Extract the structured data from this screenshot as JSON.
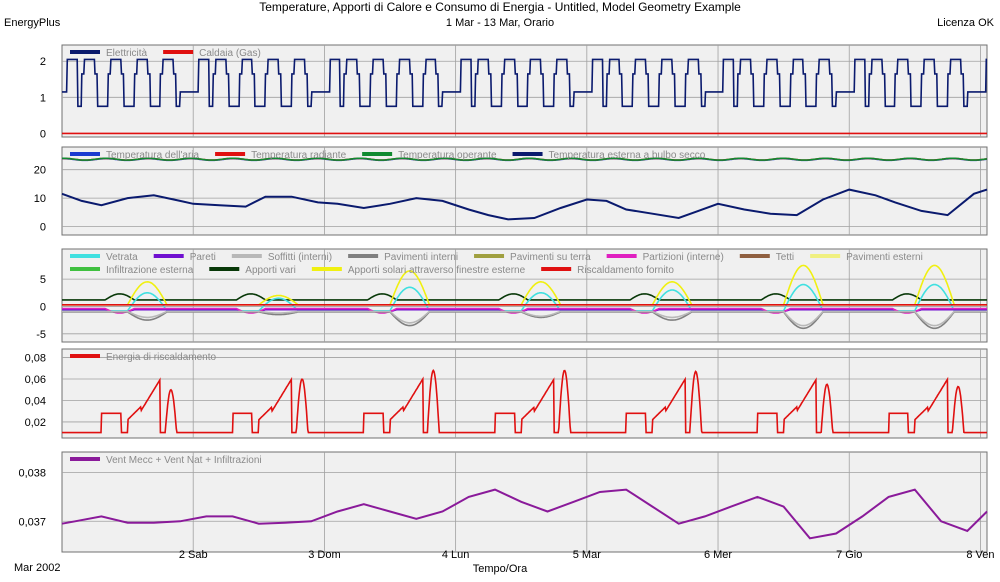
{
  "header": {
    "title": "Temperature, Apporti di Calore e Consumo di Energia - Untitled, Model Geometry Example",
    "subtitle": "1 Mar - 13 Mar, Orario",
    "app": "EnergyPlus",
    "license": "Licenza OK"
  },
  "footer": {
    "date_label": "Mar 2002",
    "xlabel": "Tempo/Ora"
  },
  "colors": {
    "panel_bg": "#f0f0f0",
    "grid": "#a0a0a0",
    "navy": "#0a1a6e",
    "red": "#e01010",
    "blue": "#1a3ad0",
    "green": "#108a30",
    "purple": "#8a1a9a"
  },
  "chart_data": {
    "type": "line",
    "x_ticks": [
      {
        "day": 2,
        "label": "2 Sab"
      },
      {
        "day": 3,
        "label": "3 Dom"
      },
      {
        "day": 4,
        "label": "4 Lun"
      },
      {
        "day": 5,
        "label": "5 Mar"
      },
      {
        "day": 6,
        "label": "6 Mer"
      },
      {
        "day": 7,
        "label": "7 Gio"
      },
      {
        "day": 8,
        "label": "8 Ven"
      }
    ],
    "xlim": [
      1.0,
      8.05
    ],
    "panels": [
      {
        "id": "energy",
        "yticks": [
          0,
          1,
          2
        ],
        "ytick_labels": [
          "0",
          "1",
          "2"
        ],
        "ylim": [
          -0.1,
          2.45
        ],
        "legend": [
          {
            "name": "Elettricità",
            "color": "#0a1a6e"
          },
          {
            "name": "Caldaia (Gas)",
            "color": "#e01010"
          }
        ],
        "series": [
          {
            "name": "Elettricità",
            "color": "#0a1a6e",
            "kind": "electric",
            "weekday": 0.75,
            "base": 1.15,
            "peak": 2.05,
            "bump": 1.65
          },
          {
            "name": "Caldaia (Gas)",
            "color": "#e01010",
            "kind": "const",
            "value": 0
          }
        ]
      },
      {
        "id": "temps",
        "yticks": [
          0,
          10,
          20
        ],
        "ytick_labels": [
          "0",
          "10",
          "20"
        ],
        "ylim": [
          -3,
          28
        ],
        "legend": [
          {
            "name": "Temperatura dell'aria",
            "color": "#1a3ad0"
          },
          {
            "name": "Temperatura radiante",
            "color": "#e01010"
          },
          {
            "name": "Temperatura operante",
            "color": "#108a30"
          },
          {
            "name": "Temperatura esterna a bulbo secco",
            "color": "#0a1a6e"
          }
        ],
        "series": [
          {
            "name": "Temperatura dell'aria",
            "color": "#1a3ad0",
            "kind": "near",
            "value": 23.6,
            "ripple": 0.5
          },
          {
            "name": "Temperatura radiante",
            "color": "#e01010",
            "kind": "near",
            "value": 23.7,
            "ripple": 0.5
          },
          {
            "name": "Temperatura operante",
            "color": "#108a30",
            "kind": "near",
            "value": 23.7,
            "ripple": 0.55
          },
          {
            "name": "Temperatura esterna a bulbo secco",
            "color": "#0a1a6e",
            "kind": "points",
            "width": 2,
            "x": [
              1.0,
              1.15,
              1.3,
              1.5,
              1.7,
              1.9,
              2.0,
              2.2,
              2.4,
              2.55,
              2.75,
              2.95,
              3.1,
              3.3,
              3.5,
              3.7,
              3.9,
              4.1,
              4.25,
              4.4,
              4.6,
              4.8,
              5.0,
              5.15,
              5.3,
              5.5,
              5.7,
              5.85,
              6.0,
              6.2,
              6.4,
              6.6,
              6.8,
              7.0,
              7.2,
              7.35,
              7.55,
              7.75,
              7.95,
              8.05
            ],
            "y": [
              11.5,
              9,
              7.5,
              10,
              11,
              9,
              8,
              7.5,
              7,
              10.5,
              10.5,
              8.5,
              8,
              6.5,
              8,
              10,
              9,
              6,
              4,
              2.5,
              3,
              6.5,
              9.5,
              9,
              6,
              4.5,
              3,
              5.5,
              8,
              6,
              4.5,
              4,
              9.5,
              13,
              11,
              8.5,
              5.5,
              4,
              11.5,
              13
            ]
          }
        ]
      },
      {
        "id": "gains",
        "yticks": [
          -5,
          0,
          5
        ],
        "ytick_labels": [
          "-5",
          "0",
          "5"
        ],
        "ylim": [
          -6.5,
          10.5
        ],
        "legend_rows": [
          [
            {
              "name": "Vetrata",
              "color": "#40e0e0"
            },
            {
              "name": "Pareti",
              "color": "#7010d0"
            },
            {
              "name": "Soffitti (interni)",
              "color": "#b8b8b8"
            },
            {
              "name": "Pavimenti interni",
              "color": "#808080"
            },
            {
              "name": "Pavimenti su terra",
              "color": "#a0a040"
            },
            {
              "name": "Partizioni (interne)",
              "color": "#e020c0"
            },
            {
              "name": "Tetti",
              "color": "#906040"
            },
            {
              "name": "Pavimenti esterni",
              "color": "#f0f080"
            }
          ],
          [
            {
              "name": "Infiltrazione esterna",
              "color": "#40c040"
            },
            {
              "name": "Apporti vari",
              "color": "#083808"
            },
            {
              "name": "Apporti solari attraverso finestre esterne",
              "color": "#f0f010"
            },
            {
              "name": "Riscaldamento fornito",
              "color": "#e01010"
            }
          ]
        ],
        "series": [
          {
            "name": "Apporti vari",
            "color": "#083808",
            "kind": "daily",
            "base": 1.2,
            "amp": 1.1
          },
          {
            "name": "Apporti solari attraverso finestre esterne",
            "color": "#f0f010",
            "kind": "solar",
            "base": 0.3,
            "peaks": [
              4.5,
              2,
              6.5,
              4.5,
              4.5,
              7.5
            ]
          },
          {
            "name": "Vetrata",
            "color": "#40e0e0",
            "kind": "solar",
            "base": -0.8,
            "peaks": [
              2.5,
              1.5,
              3.5,
              2.5,
              3,
              4
            ]
          },
          {
            "name": "Riscaldamento fornito",
            "color": "#e01010",
            "kind": "const",
            "value": 0.3
          },
          {
            "name": "Pareti",
            "color": "#7010d0",
            "kind": "daily",
            "base": -0.6,
            "amp": -0.5
          },
          {
            "name": "Partizioni (interne)",
            "color": "#e020c0",
            "kind": "daily",
            "base": -0.4,
            "amp": -0.8
          },
          {
            "name": "Pavimenti interni",
            "color": "#808080",
            "kind": "solar",
            "base": -1.0,
            "peaks": [
              -2.5,
              -1.5,
              -3.5,
              -2,
              -2.5,
              -4
            ]
          },
          {
            "name": "Soffitti (interni)",
            "color": "#b8b8b8",
            "kind": "solar",
            "base": -0.9,
            "peaks": [
              -2,
              -1.2,
              -3,
              -1.8,
              -2,
              -3.5
            ]
          }
        ]
      },
      {
        "id": "heating",
        "yticks": [
          0.02,
          0.04,
          0.06,
          0.08
        ],
        "ytick_labels": [
          "0,02",
          "0,04",
          "0,06",
          "0,08"
        ],
        "ylim": [
          0.005,
          0.088
        ],
        "legend": [
          {
            "name": "Energia di riscaldamento",
            "color": "#e01010"
          }
        ],
        "series": [
          {
            "name": "Energia di riscaldamento",
            "color": "#e01010",
            "kind": "heating",
            "low": 0.01,
            "peaks": [
              0.05,
              0.06,
              0.068,
              0.068,
              0.067,
              0.055,
              0.053
            ]
          }
        ]
      },
      {
        "id": "vent",
        "yticks": [
          0.037,
          0.038
        ],
        "ytick_labels": [
          "0,037",
          "0,038"
        ],
        "ylim": [
          0.03637,
          0.03842
        ],
        "legend": [
          {
            "name": "Vent Mecc + Vent Nat + Infiltrazioni",
            "color": "#8a1a9a"
          }
        ],
        "series": [
          {
            "name": "Vent Mecc + Vent Nat + Infiltrazioni",
            "color": "#8a1a9a",
            "kind": "points",
            "width": 2,
            "x": [
              1.0,
              1.1,
              1.3,
              1.5,
              1.7,
              1.9,
              2.1,
              2.3,
              2.5,
              2.7,
              2.9,
              3.1,
              3.3,
              3.5,
              3.7,
              3.9,
              4.1,
              4.3,
              4.5,
              4.7,
              4.9,
              5.1,
              5.3,
              5.5,
              5.7,
              5.9,
              6.1,
              6.3,
              6.5,
              6.7,
              6.9,
              7.1,
              7.3,
              7.5,
              7.7,
              7.9,
              8.05
            ],
            "y": [
              0.03695,
              0.037,
              0.0371,
              0.03697,
              0.03697,
              0.037,
              0.0371,
              0.0371,
              0.03695,
              0.03697,
              0.037,
              0.0372,
              0.03735,
              0.0372,
              0.03705,
              0.0372,
              0.0375,
              0.03765,
              0.0374,
              0.0372,
              0.0374,
              0.0376,
              0.03765,
              0.0373,
              0.03695,
              0.0371,
              0.0373,
              0.0375,
              0.0373,
              0.03665,
              0.03675,
              0.0371,
              0.0375,
              0.03765,
              0.037,
              0.0368,
              0.0372
            ]
          }
        ]
      }
    ]
  }
}
